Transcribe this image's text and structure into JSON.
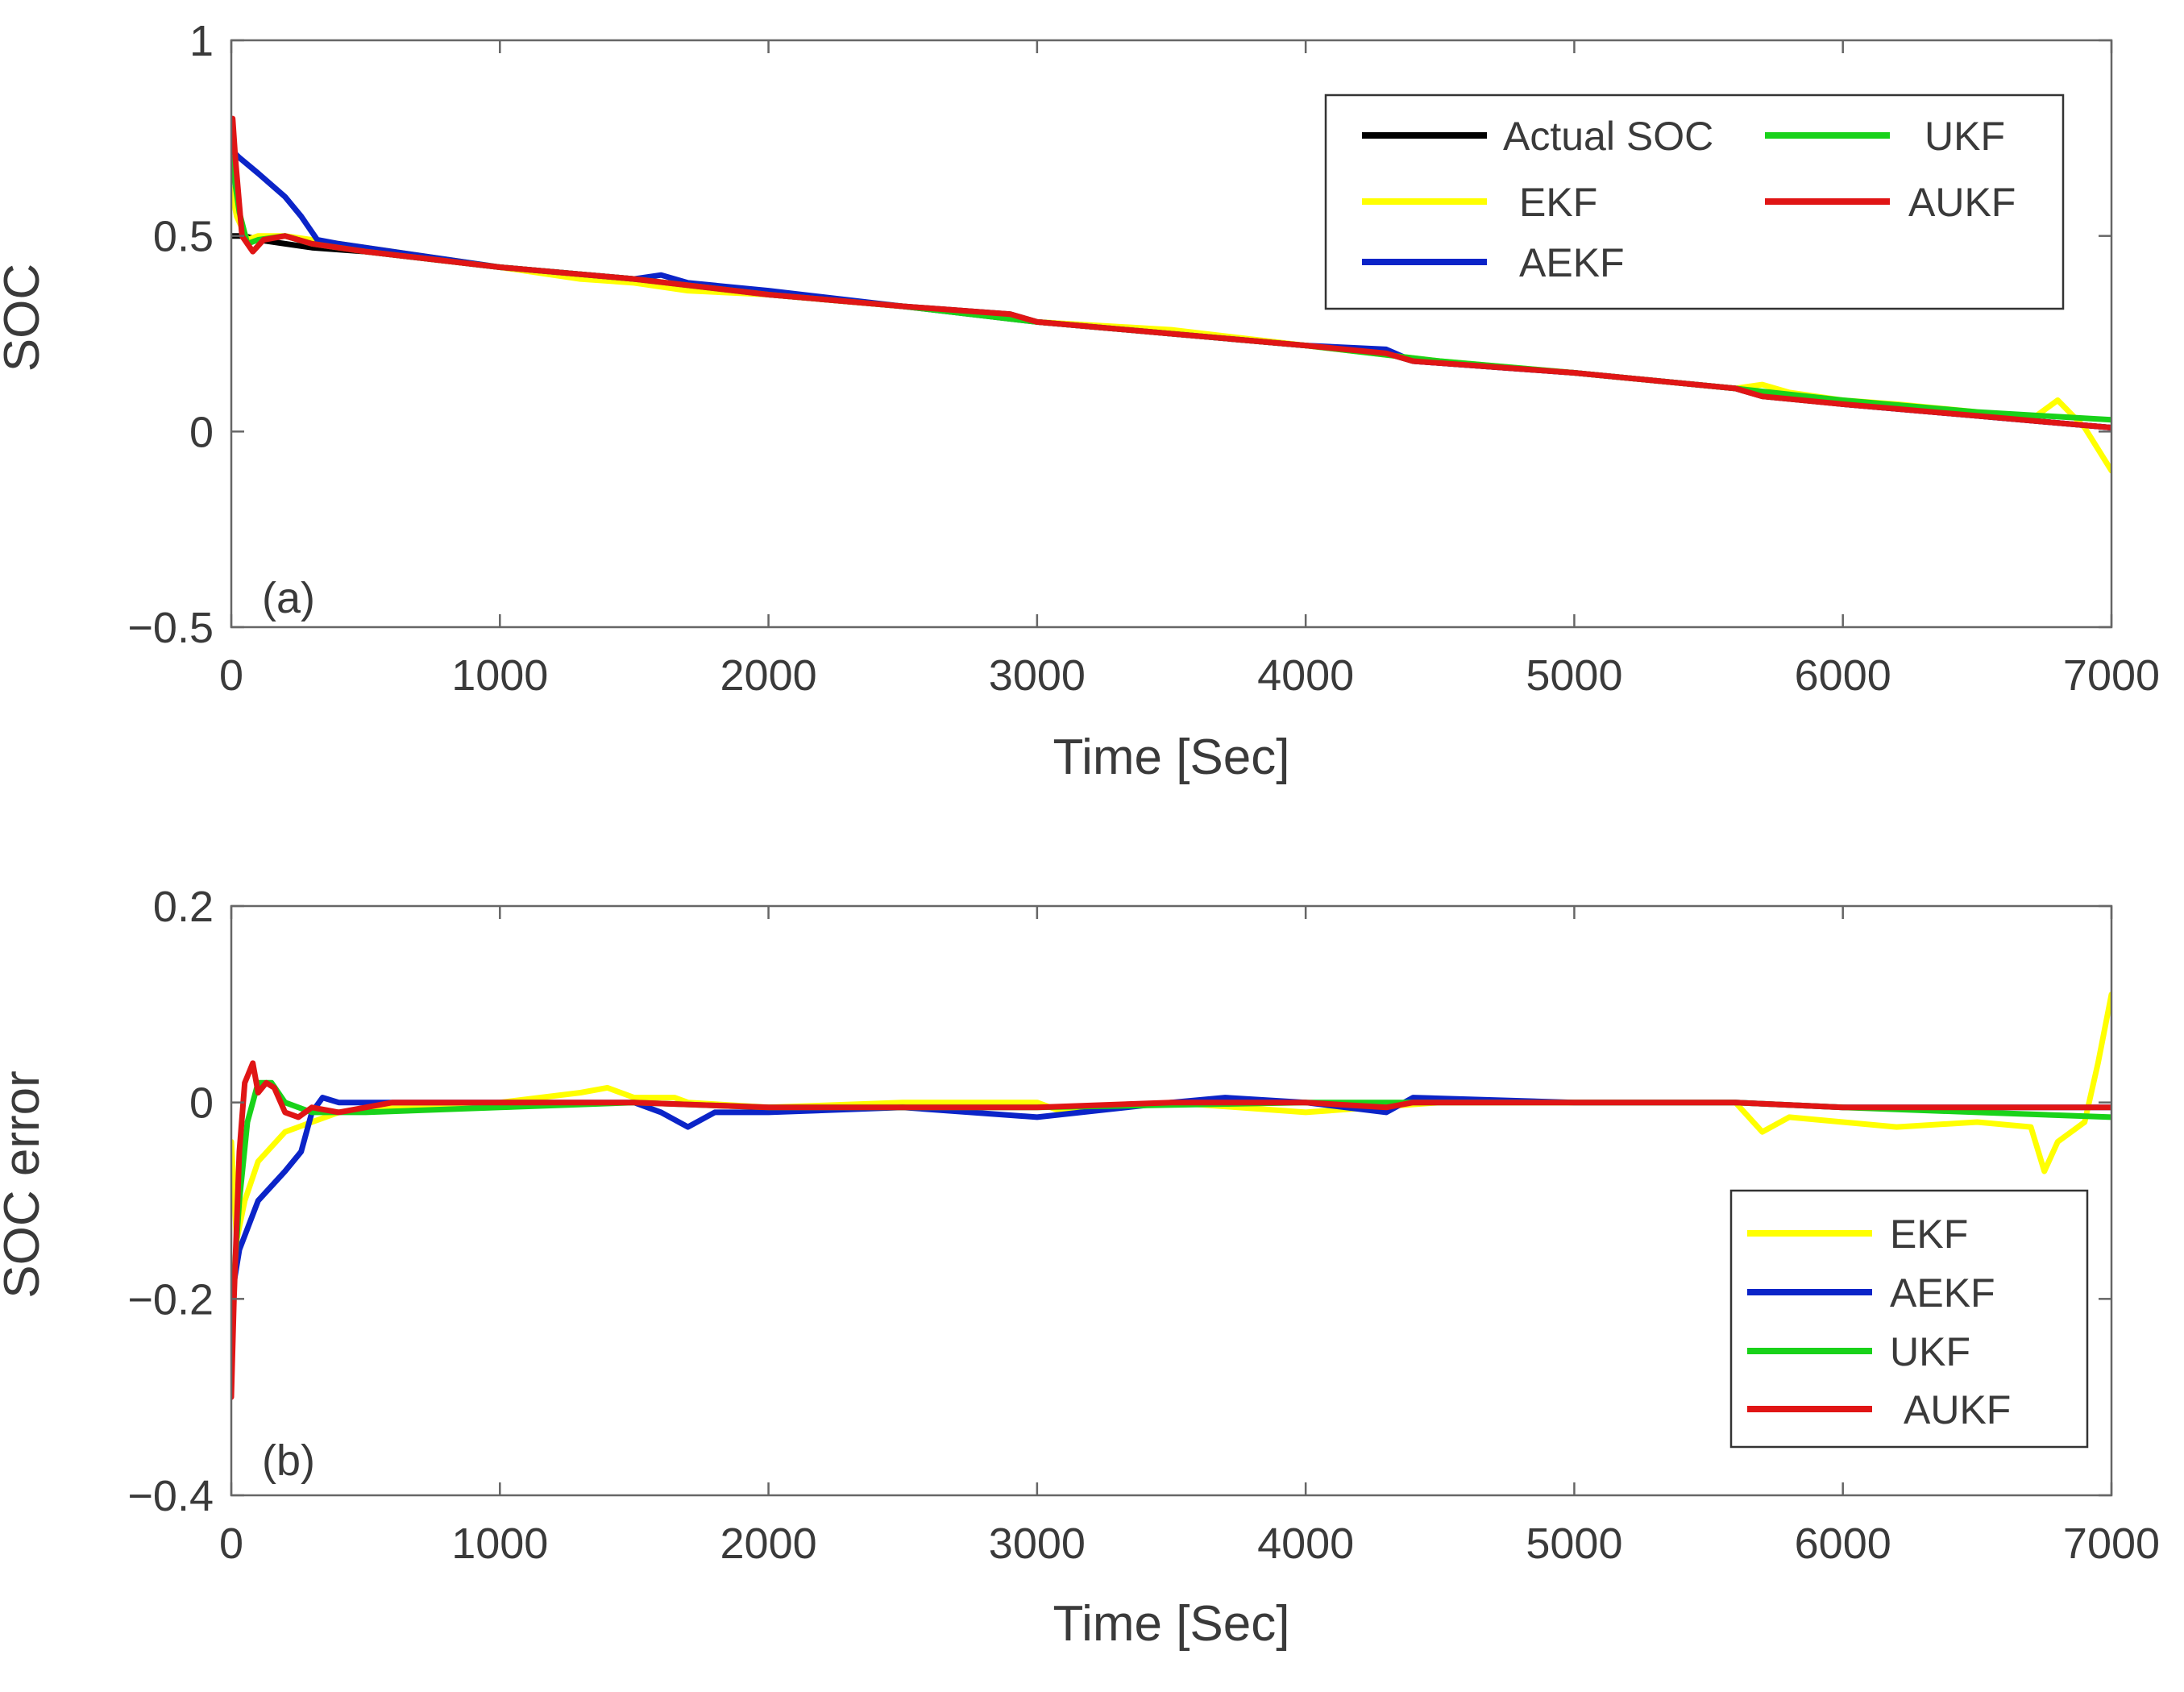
{
  "chart_data": [
    {
      "type": "line",
      "panel_label": "(a)",
      "xlabel": "Time [Sec]",
      "ylabel": "SOC",
      "xlim": [
        0,
        7000
      ],
      "ylim": [
        -0.5,
        1
      ],
      "xticks": [
        0,
        1000,
        2000,
        3000,
        4000,
        5000,
        6000,
        7000
      ],
      "xtick_labels": [
        "0",
        "1000",
        "2000",
        "3000",
        "4000",
        "5000",
        "6000",
        "7000"
      ],
      "yticks": [
        -0.5,
        0,
        0.5,
        1
      ],
      "ytick_labels": [
        "−0.5",
        "0",
        "0.5",
        "1"
      ],
      "legend_position": "top-right",
      "series": [
        {
          "name": "Actual SOC",
          "color": "#000000",
          "x": [
            0,
            50,
            100,
            200,
            300,
            500,
            1000,
            1500,
            1600,
            2000,
            2500,
            2900,
            3000,
            3500,
            4000,
            4300,
            4400,
            5000,
            5600,
            5700,
            6000,
            6500,
            7000
          ],
          "y": [
            0.5,
            0.5,
            0.49,
            0.48,
            0.47,
            0.46,
            0.42,
            0.39,
            0.38,
            0.35,
            0.32,
            0.3,
            0.28,
            0.25,
            0.22,
            0.2,
            0.18,
            0.15,
            0.11,
            0.09,
            0.07,
            0.04,
            0.01
          ]
        },
        {
          "name": "EKF",
          "color": "#ffff00",
          "x": [
            0,
            20,
            60,
            100,
            200,
            300,
            500,
            1000,
            1300,
            1500,
            1700,
            2000,
            2500,
            3000,
            3500,
            4000,
            4500,
            5000,
            5600,
            5700,
            5800,
            6000,
            6200,
            6500,
            6700,
            6800,
            6900,
            7000
          ],
          "y": [
            0.62,
            0.55,
            0.49,
            0.5,
            0.5,
            0.49,
            0.47,
            0.42,
            0.39,
            0.38,
            0.36,
            0.35,
            0.32,
            0.28,
            0.26,
            0.22,
            0.18,
            0.15,
            0.11,
            0.12,
            0.1,
            0.08,
            0.07,
            0.05,
            0.03,
            0.08,
            0.01,
            -0.1
          ]
        },
        {
          "name": "AEKF",
          "color": "#0b24c8",
          "x": [
            0,
            30,
            100,
            200,
            260,
            320,
            400,
            600,
            1000,
            1500,
            1600,
            1700,
            2000,
            2500,
            3000,
            3500,
            4000,
            4300,
            4400,
            5000,
            5600,
            6000,
            6500,
            7000
          ],
          "y": [
            0.72,
            0.7,
            0.66,
            0.6,
            0.55,
            0.49,
            0.48,
            0.46,
            0.42,
            0.39,
            0.4,
            0.38,
            0.36,
            0.32,
            0.28,
            0.25,
            0.22,
            0.21,
            0.18,
            0.15,
            0.11,
            0.07,
            0.04,
            0.01
          ]
        },
        {
          "name": "UKF",
          "color": "#19d21a",
          "x": [
            0,
            30,
            60,
            100,
            200,
            300,
            500,
            1000,
            1500,
            2000,
            2500,
            3000,
            3500,
            4000,
            4500,
            5000,
            5600,
            6000,
            6500,
            7000
          ],
          "y": [
            0.7,
            0.56,
            0.48,
            0.49,
            0.5,
            0.48,
            0.46,
            0.42,
            0.39,
            0.35,
            0.32,
            0.28,
            0.25,
            0.22,
            0.18,
            0.15,
            0.11,
            0.08,
            0.05,
            0.03
          ]
        },
        {
          "name": "AUKF",
          "color": "#e01515",
          "x": [
            0,
            5,
            15,
            40,
            80,
            120,
            200,
            300,
            500,
            1000,
            1500,
            2000,
            2500,
            2900,
            3000,
            3500,
            4000,
            4300,
            4400,
            5000,
            5600,
            5700,
            6000,
            6500,
            7000
          ],
          "y": [
            0.8,
            0.8,
            0.7,
            0.5,
            0.46,
            0.49,
            0.5,
            0.48,
            0.46,
            0.42,
            0.39,
            0.35,
            0.32,
            0.3,
            0.28,
            0.25,
            0.22,
            0.2,
            0.18,
            0.15,
            0.11,
            0.09,
            0.07,
            0.04,
            0.01
          ]
        }
      ]
    },
    {
      "type": "line",
      "panel_label": "(b)",
      "xlabel": "Time [Sec]",
      "ylabel": "SOC error",
      "xlim": [
        0,
        7000
      ],
      "ylim": [
        -0.4,
        0.2
      ],
      "xticks": [
        0,
        1000,
        2000,
        3000,
        4000,
        5000,
        6000,
        7000
      ],
      "xtick_labels": [
        "0",
        "1000",
        "2000",
        "3000",
        "4000",
        "5000",
        "6000",
        "7000"
      ],
      "yticks": [
        -0.4,
        -0.2,
        0,
        0.2
      ],
      "ytick_labels": [
        "−0.4",
        "−0.2",
        "0",
        "0.2"
      ],
      "legend_position": "bottom-right",
      "series": [
        {
          "name": "EKF",
          "color": "#ffff00",
          "x": [
            0,
            20,
            50,
            100,
            200,
            300,
            400,
            600,
            1000,
            1300,
            1400,
            1500,
            1650,
            1700,
            2000,
            2500,
            3000,
            3100,
            3500,
            4000,
            4500,
            5000,
            5600,
            5700,
            5800,
            6000,
            6200,
            6500,
            6700,
            6750,
            6800,
            6900,
            6950,
            7000
          ],
          "y": [
            -0.04,
            -0.14,
            -0.1,
            -0.06,
            -0.03,
            -0.02,
            -0.01,
            -0.005,
            0,
            0.01,
            0.015,
            0.005,
            0.005,
            0,
            -0.005,
            0,
            0,
            -0.01,
            0,
            -0.01,
            0,
            0,
            0,
            -0.03,
            -0.015,
            -0.02,
            -0.025,
            -0.02,
            -0.025,
            -0.07,
            -0.04,
            -0.02,
            0.04,
            0.11
          ]
        },
        {
          "name": "AEKF",
          "color": "#0b24c8",
          "x": [
            0,
            30,
            100,
            200,
            260,
            300,
            340,
            400,
            600,
            1000,
            1500,
            1600,
            1700,
            1800,
            2000,
            2500,
            3000,
            3500,
            3700,
            4000,
            4300,
            4400,
            5000,
            5600,
            6000,
            6500,
            7000
          ],
          "y": [
            -0.2,
            -0.15,
            -0.1,
            -0.07,
            -0.05,
            -0.01,
            0.005,
            0,
            0,
            0,
            0,
            -0.01,
            -0.025,
            -0.01,
            -0.01,
            -0.005,
            -0.015,
            0,
            0.005,
            0,
            -0.01,
            0.005,
            0,
            0,
            -0.005,
            -0.005,
            -0.005
          ]
        },
        {
          "name": "UKF",
          "color": "#19d21a",
          "x": [
            0,
            30,
            60,
            100,
            150,
            200,
            300,
            500,
            1000,
            1500,
            2000,
            3000,
            4000,
            5000,
            5600,
            6000,
            6500,
            7000
          ],
          "y": [
            -0.22,
            -0.1,
            -0.02,
            0.02,
            0.02,
            0,
            -0.01,
            -0.01,
            -0.005,
            0,
            -0.005,
            -0.005,
            0,
            0,
            0,
            -0.005,
            -0.01,
            -0.015
          ]
        },
        {
          "name": "AUKF",
          "color": "#e01515",
          "x": [
            0,
            10,
            30,
            50,
            80,
            100,
            130,
            160,
            200,
            250,
            300,
            400,
            600,
            1000,
            1500,
            2000,
            2500,
            3000,
            3500,
            4000,
            4300,
            4400,
            5000,
            5600,
            6000,
            6500,
            7000
          ],
          "y": [
            -0.3,
            -0.2,
            -0.05,
            0.02,
            0.04,
            0.01,
            0.02,
            0.015,
            -0.01,
            -0.015,
            -0.005,
            -0.01,
            0,
            0,
            0,
            -0.005,
            -0.005,
            -0.005,
            0,
            0,
            -0.005,
            0,
            0,
            0,
            -0.005,
            -0.005,
            -0.005
          ]
        }
      ]
    }
  ]
}
